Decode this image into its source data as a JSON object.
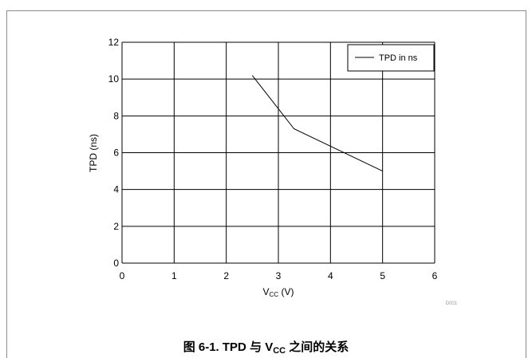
{
  "chart_data": {
    "type": "line",
    "xlabel": {
      "main": "V",
      "sub": "CC",
      "rest": " (V)"
    },
    "ylabel": "TPD (ns)",
    "xlim": [
      0,
      6
    ],
    "ylim": [
      0,
      12
    ],
    "x_ticks": [
      0,
      1,
      2,
      3,
      4,
      5,
      6
    ],
    "y_ticks": [
      0,
      2,
      4,
      6,
      8,
      10,
      12
    ],
    "grid": true,
    "legend_position": "top-right",
    "series": [
      {
        "name": "TPD in ns",
        "color": "#000000",
        "points": [
          {
            "x": 2.5,
            "y": 10.2
          },
          {
            "x": 3.3,
            "y": 7.3
          },
          {
            "x": 5.0,
            "y": 5.0
          }
        ]
      }
    ],
    "annotation": "D001"
  },
  "caption": {
    "prefix": "图 6-1. TPD 与 V",
    "sub": "CC",
    "suffix": " 之间的关系"
  }
}
